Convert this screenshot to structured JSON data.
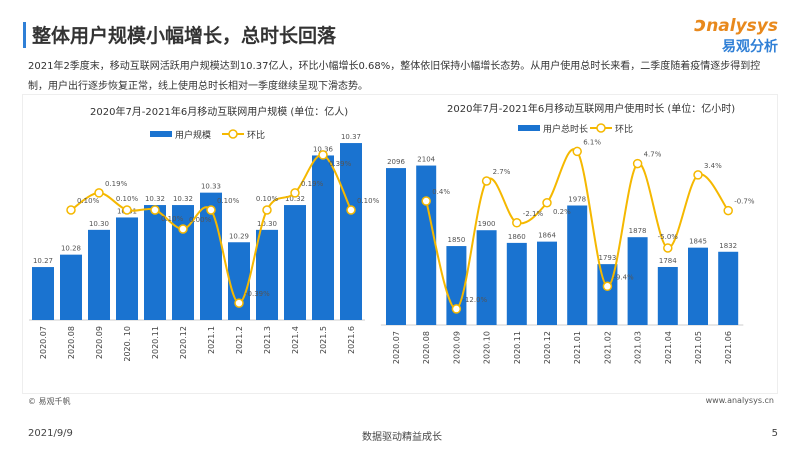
{
  "header": {
    "title": "整体用户规模小幅增长，总时长回落",
    "logo_en": "nalysys",
    "logo_cn": "易观分析"
  },
  "description": "2021年2季度末，移动互联网活跃用户规模达到10.37亿人，环比小幅增长0.68%，整体依旧保持小幅增长态势。从用户使用总时长来看，二季度随着疫情逐步得到控制，用户出行逐步恢复正常，线上使用总时长相对一季度继续呈现下滑态势。",
  "colors": {
    "bar": "#1a73d0",
    "line": "#f5b800",
    "accent": "#2f7fd6"
  },
  "chart_data": [
    {
      "type": "bar+line",
      "title": "2020年7月-2021年6月移动互联网用户规模 (单位：亿人)",
      "categories": [
        "2020.07",
        "2020.08",
        "2020.09",
        "2020. 10",
        "2020.11",
        "2020.12",
        "2021.1",
        "2021.2",
        "2021.3",
        "2021.4",
        "2021.5",
        "2021.6"
      ],
      "series": [
        {
          "name": "用户规模",
          "type": "bar",
          "values": [
            10.27,
            10.28,
            10.3,
            10.31,
            10.32,
            10.32,
            10.33,
            10.29,
            10.3,
            10.32,
            10.36,
            10.37
          ],
          "labels": [
            "10.27",
            "10.28",
            "10.30",
            "10.31",
            "10.32",
            "10.32",
            "10.33",
            "10.29",
            "10.30",
            "10.32",
            "10.36",
            "10.37"
          ]
        },
        {
          "name": "环比",
          "type": "line",
          "values": [
            null,
            0.1,
            0.19,
            0.1,
            0.1,
            0.0,
            0.1,
            -0.39,
            0.1,
            0.19,
            0.39,
            0.1
          ],
          "labels": [
            "",
            "0.10%",
            "0.19%",
            "0.10%",
            "0.10%",
            "0.00%",
            "0.10%",
            "-0.39%",
            "0.10%",
            "0.19%",
            "0.39%",
            "0.10%"
          ]
        }
      ]
    },
    {
      "type": "bar+line",
      "title": "2020年7月-2021年6月移动互联网用户使用时长 (单位：亿小时)",
      "categories": [
        "2020.07",
        "2020.08",
        "2020.09",
        "2020.10",
        "2020.11",
        "2020.12",
        "2021.01",
        "2021.02",
        "2021.03",
        "2021.04",
        "2021.05",
        "2021.06"
      ],
      "series": [
        {
          "name": "用户总时长",
          "type": "bar",
          "values": [
            2096,
            2104,
            1850,
            1900,
            1860,
            1864,
            1978,
            1793,
            1878,
            1784,
            1845,
            1832
          ],
          "labels": [
            "2096",
            "2104",
            "1850",
            "1900",
            "1860",
            "1864",
            "1978",
            "1793",
            "1878",
            "1784",
            "1845",
            "1832"
          ]
        },
        {
          "name": "环比",
          "type": "line",
          "values": [
            null,
            0.4,
            -12.0,
            2.7,
            -2.1,
            0.2,
            6.1,
            -9.4,
            4.7,
            -5.0,
            3.4,
            -0.7
          ],
          "labels": [
            "",
            "0.4%",
            "-12.0%",
            "2.7%",
            "-2.1%",
            "0.2%",
            "6.1%",
            "-9.4%",
            "4.7%",
            "-5.0%",
            "3.4%",
            "-0.7%"
          ]
        }
      ]
    }
  ],
  "footer": {
    "source": "© 易观千帆",
    "site": "www.analysys.cn",
    "date": "2021/9/9",
    "slogan": "数据驱动精益成长",
    "page": "5"
  }
}
